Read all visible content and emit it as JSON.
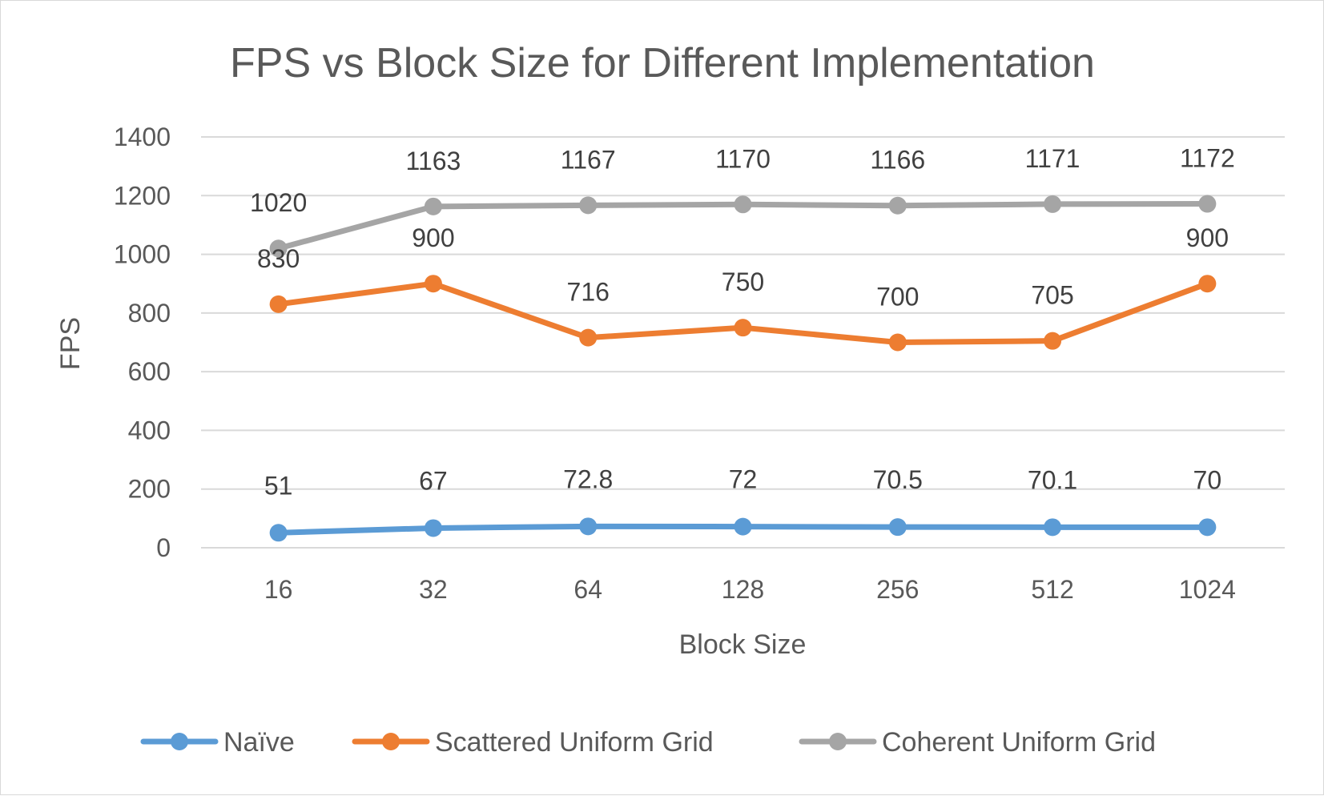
{
  "chart_data": {
    "type": "line",
    "title": "FPS vs Block Size for Different Implementation",
    "xlabel": "Block Size",
    "ylabel": "FPS",
    "categories": [
      "16",
      "32",
      "64",
      "128",
      "256",
      "512",
      "1024"
    ],
    "ylim": [
      0,
      1400
    ],
    "yticks": [
      0,
      200,
      400,
      600,
      800,
      1000,
      1200,
      1400
    ],
    "grid": true,
    "legend_position": "bottom",
    "series": [
      {
        "name": "Naïve",
        "color": "#5b9bd5",
        "values": [
          51,
          67,
          72.8,
          72,
          70.5,
          70.1,
          70
        ],
        "labels": [
          "51",
          "67",
          "72.8",
          "72",
          "70.5",
          "70.1",
          "70"
        ]
      },
      {
        "name": "Scattered Uniform Grid",
        "color": "#ed7d31",
        "values": [
          830,
          900,
          716,
          750,
          700,
          705,
          900
        ],
        "labels": [
          "830",
          "900",
          "716",
          "750",
          "700",
          "705",
          "900"
        ]
      },
      {
        "name": "Coherent Uniform Grid",
        "color": "#a5a5a5",
        "values": [
          1020,
          1163,
          1167,
          1170,
          1166,
          1171,
          1172
        ],
        "labels": [
          "1020",
          "1163",
          "1167",
          "1170",
          "1166",
          "1171",
          "1172"
        ]
      }
    ]
  }
}
